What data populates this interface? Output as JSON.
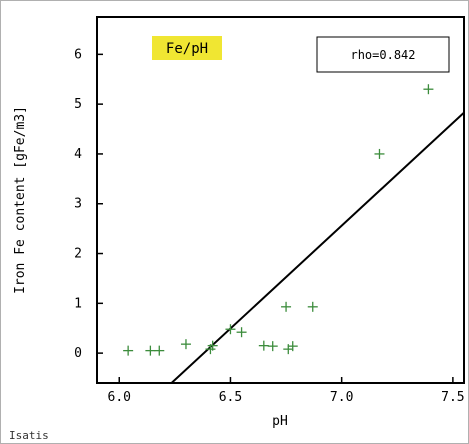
{
  "chart_data": {
    "type": "scatter",
    "title": "Fe/pH",
    "xlabel": "pH",
    "ylabel": "Iron Fe content [gFe/m3]",
    "xlim": [
      5.9,
      7.55
    ],
    "ylim": [
      -0.6,
      6.75
    ],
    "xticks": [
      "6.0",
      "6.5",
      "7.0",
      "7.5"
    ],
    "xtick_values": [
      6.0,
      6.5,
      7.0,
      7.5
    ],
    "yticks": [
      "0",
      "1",
      "2",
      "3",
      "4",
      "5",
      "6"
    ],
    "ytick_values": [
      0,
      1,
      2,
      3,
      4,
      5,
      6
    ],
    "grid": false,
    "annotation": "rho=0.842",
    "marker_color": "#3c8c3c",
    "title_highlight_color": "#f0e632",
    "points": [
      {
        "x": 6.04,
        "y": 0.05
      },
      {
        "x": 6.14,
        "y": 0.05
      },
      {
        "x": 6.18,
        "y": 0.05
      },
      {
        "x": 6.3,
        "y": 0.18
      },
      {
        "x": 6.41,
        "y": 0.08
      },
      {
        "x": 6.42,
        "y": 0.15
      },
      {
        "x": 6.5,
        "y": 0.48
      },
      {
        "x": 6.55,
        "y": 0.42
      },
      {
        "x": 6.65,
        "y": 0.15
      },
      {
        "x": 6.69,
        "y": 0.14
      },
      {
        "x": 6.75,
        "y": 0.93
      },
      {
        "x": 6.76,
        "y": 0.08
      },
      {
        "x": 6.78,
        "y": 0.14
      },
      {
        "x": 6.87,
        "y": 0.93
      },
      {
        "x": 7.17,
        "y": 4.0
      },
      {
        "x": 7.39,
        "y": 5.3
      },
      {
        "x": 7.41,
        "y": 6.15
      }
    ],
    "regression_line": [
      {
        "x": 6.235,
        "y": -0.6
      },
      {
        "x": 7.55,
        "y": 4.83
      }
    ]
  },
  "footer": {
    "text": "Isatis"
  }
}
